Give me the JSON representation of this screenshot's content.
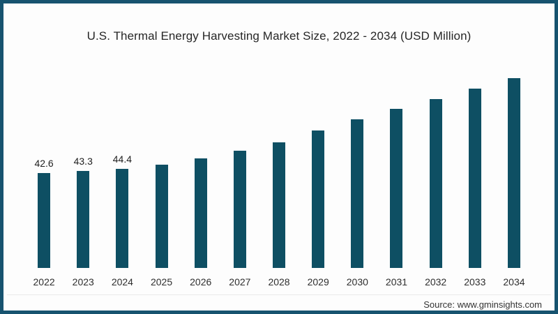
{
  "header": {
    "title": "U.S. Thermal Energy Harvesting Market Size, 2022 - 2034 (USD Million)"
  },
  "footer": {
    "source": "Source: www.gminsights.com"
  },
  "colors": {
    "bar": "#0e4f63",
    "frame_border": "#17536f"
  },
  "chart_data": {
    "type": "bar",
    "title": "U.S. Thermal Energy Harvesting Market Size, 2022 - 2034 (USD Million)",
    "unit": "USD Million",
    "categories": [
      "2022",
      "2023",
      "2024",
      "2025",
      "2026",
      "2027",
      "2028",
      "2029",
      "2030",
      "2031",
      "2032",
      "2033",
      "2034"
    ],
    "values": [
      42.6,
      43.3,
      44.4,
      46.3,
      49.1,
      52.5,
      56.3,
      61.6,
      66.6,
      71.3,
      75.6,
      80.3,
      85.0
    ],
    "data_labels": [
      "42.6",
      "43.3",
      "44.4",
      null,
      null,
      null,
      null,
      null,
      null,
      null,
      null,
      null,
      null
    ],
    "xlabel": "",
    "ylabel": "",
    "ylim": [
      0,
      90
    ],
    "grid": false,
    "y_axis_visible": false,
    "x_axis_line_visible": false,
    "legend_position": "none"
  }
}
